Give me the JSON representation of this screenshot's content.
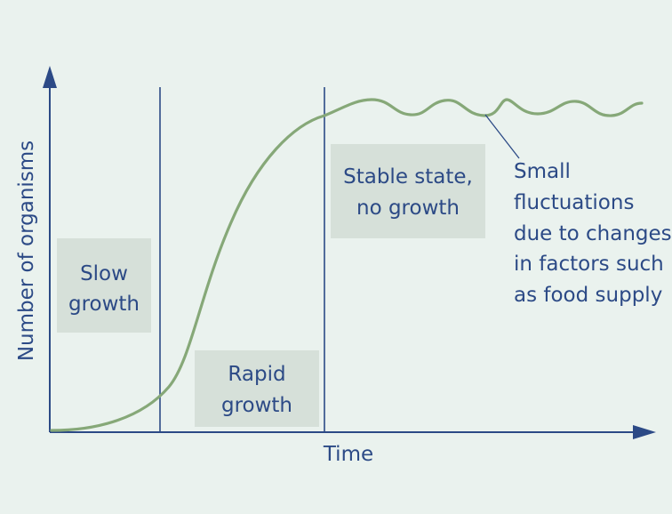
{
  "diagram": {
    "y_axis_label": "Number of organisms",
    "x_axis_label": "Time",
    "phases": [
      {
        "id": "slow",
        "lines": [
          "Slow",
          "growth"
        ]
      },
      {
        "id": "rapid",
        "lines": [
          "Rapid",
          "growth"
        ]
      },
      {
        "id": "stable",
        "lines": [
          "Stable state,",
          "no growth"
        ]
      }
    ],
    "annotation": {
      "lines": [
        "Small",
        "fluctuations",
        "due to changes",
        "in factors such",
        "as food supply"
      ]
    },
    "colors": {
      "axis": "#2c4a86",
      "curve": "#86a878",
      "box": "#d6e0d9",
      "background": "#eaf2ee"
    }
  }
}
